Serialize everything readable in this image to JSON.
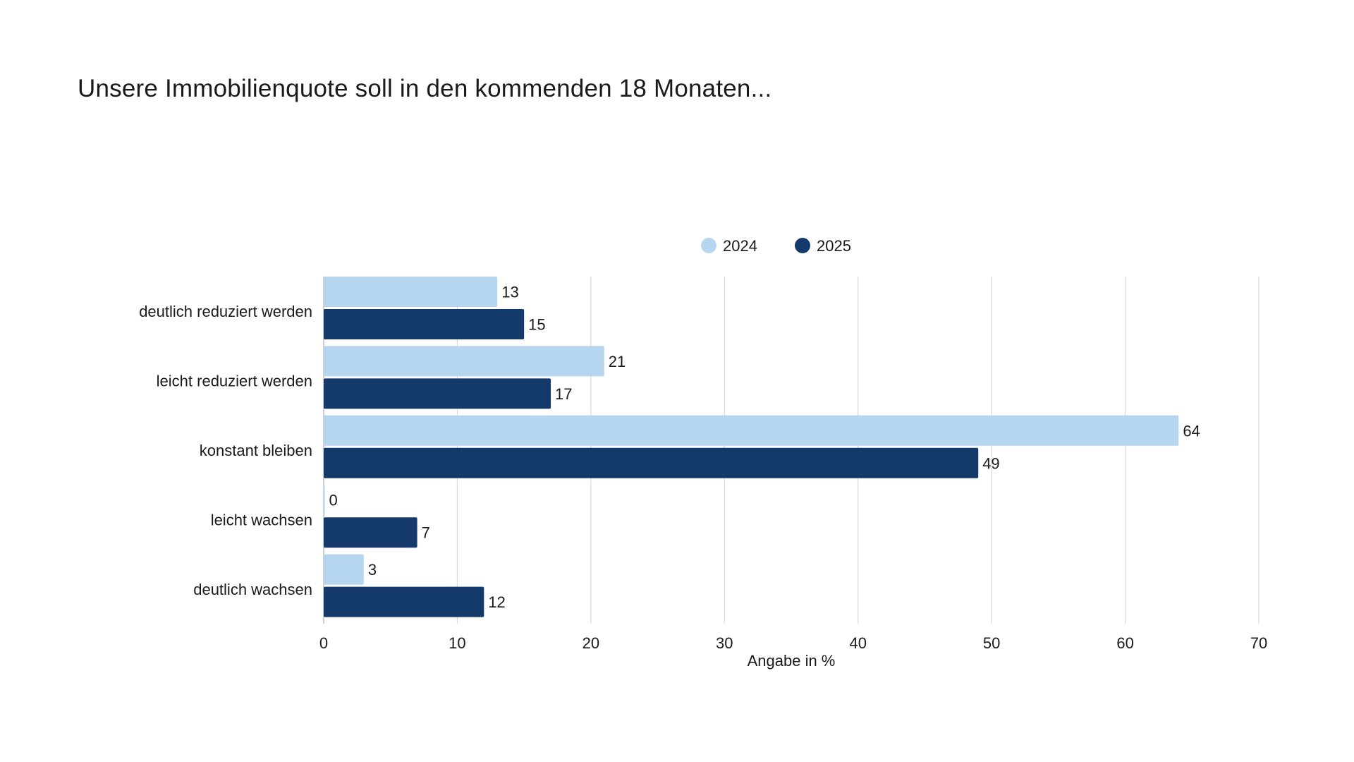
{
  "chart_data": {
    "type": "bar",
    "orientation": "horizontal",
    "title": "Unsere Immobilienquote soll in den kommenden 18 Monaten...",
    "xlabel": "Angabe in %",
    "ylabel": "",
    "categories": [
      "deutlich reduziert werden",
      "leicht reduziert werden",
      "konstant bleiben",
      "leicht wachsen",
      "deutlich wachsen"
    ],
    "series": [
      {
        "name": "2024",
        "color": "#b5d6ee",
        "values": [
          13,
          21,
          64,
          0,
          3
        ]
      },
      {
        "name": "2025",
        "color": "#143a6b",
        "values": [
          15,
          17,
          49,
          7,
          12
        ]
      }
    ],
    "xlim": [
      0,
      70
    ],
    "xticks": [
      "0",
      "10",
      "20",
      "30",
      "40",
      "50",
      "60",
      "70"
    ],
    "grid": true,
    "legend_position": "top-center"
  }
}
